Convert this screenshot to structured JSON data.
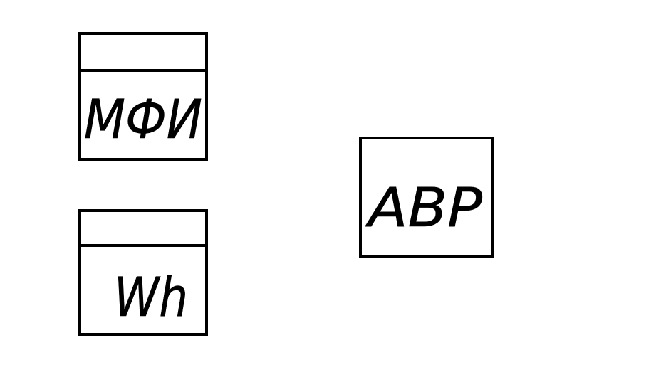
{
  "symbols": {
    "mfi": {
      "label": "МФИ"
    },
    "wh": {
      "label": "Wh"
    },
    "abr": {
      "label": "АВР"
    }
  },
  "colors": {
    "line": "#000000",
    "background": "#ffffff"
  }
}
